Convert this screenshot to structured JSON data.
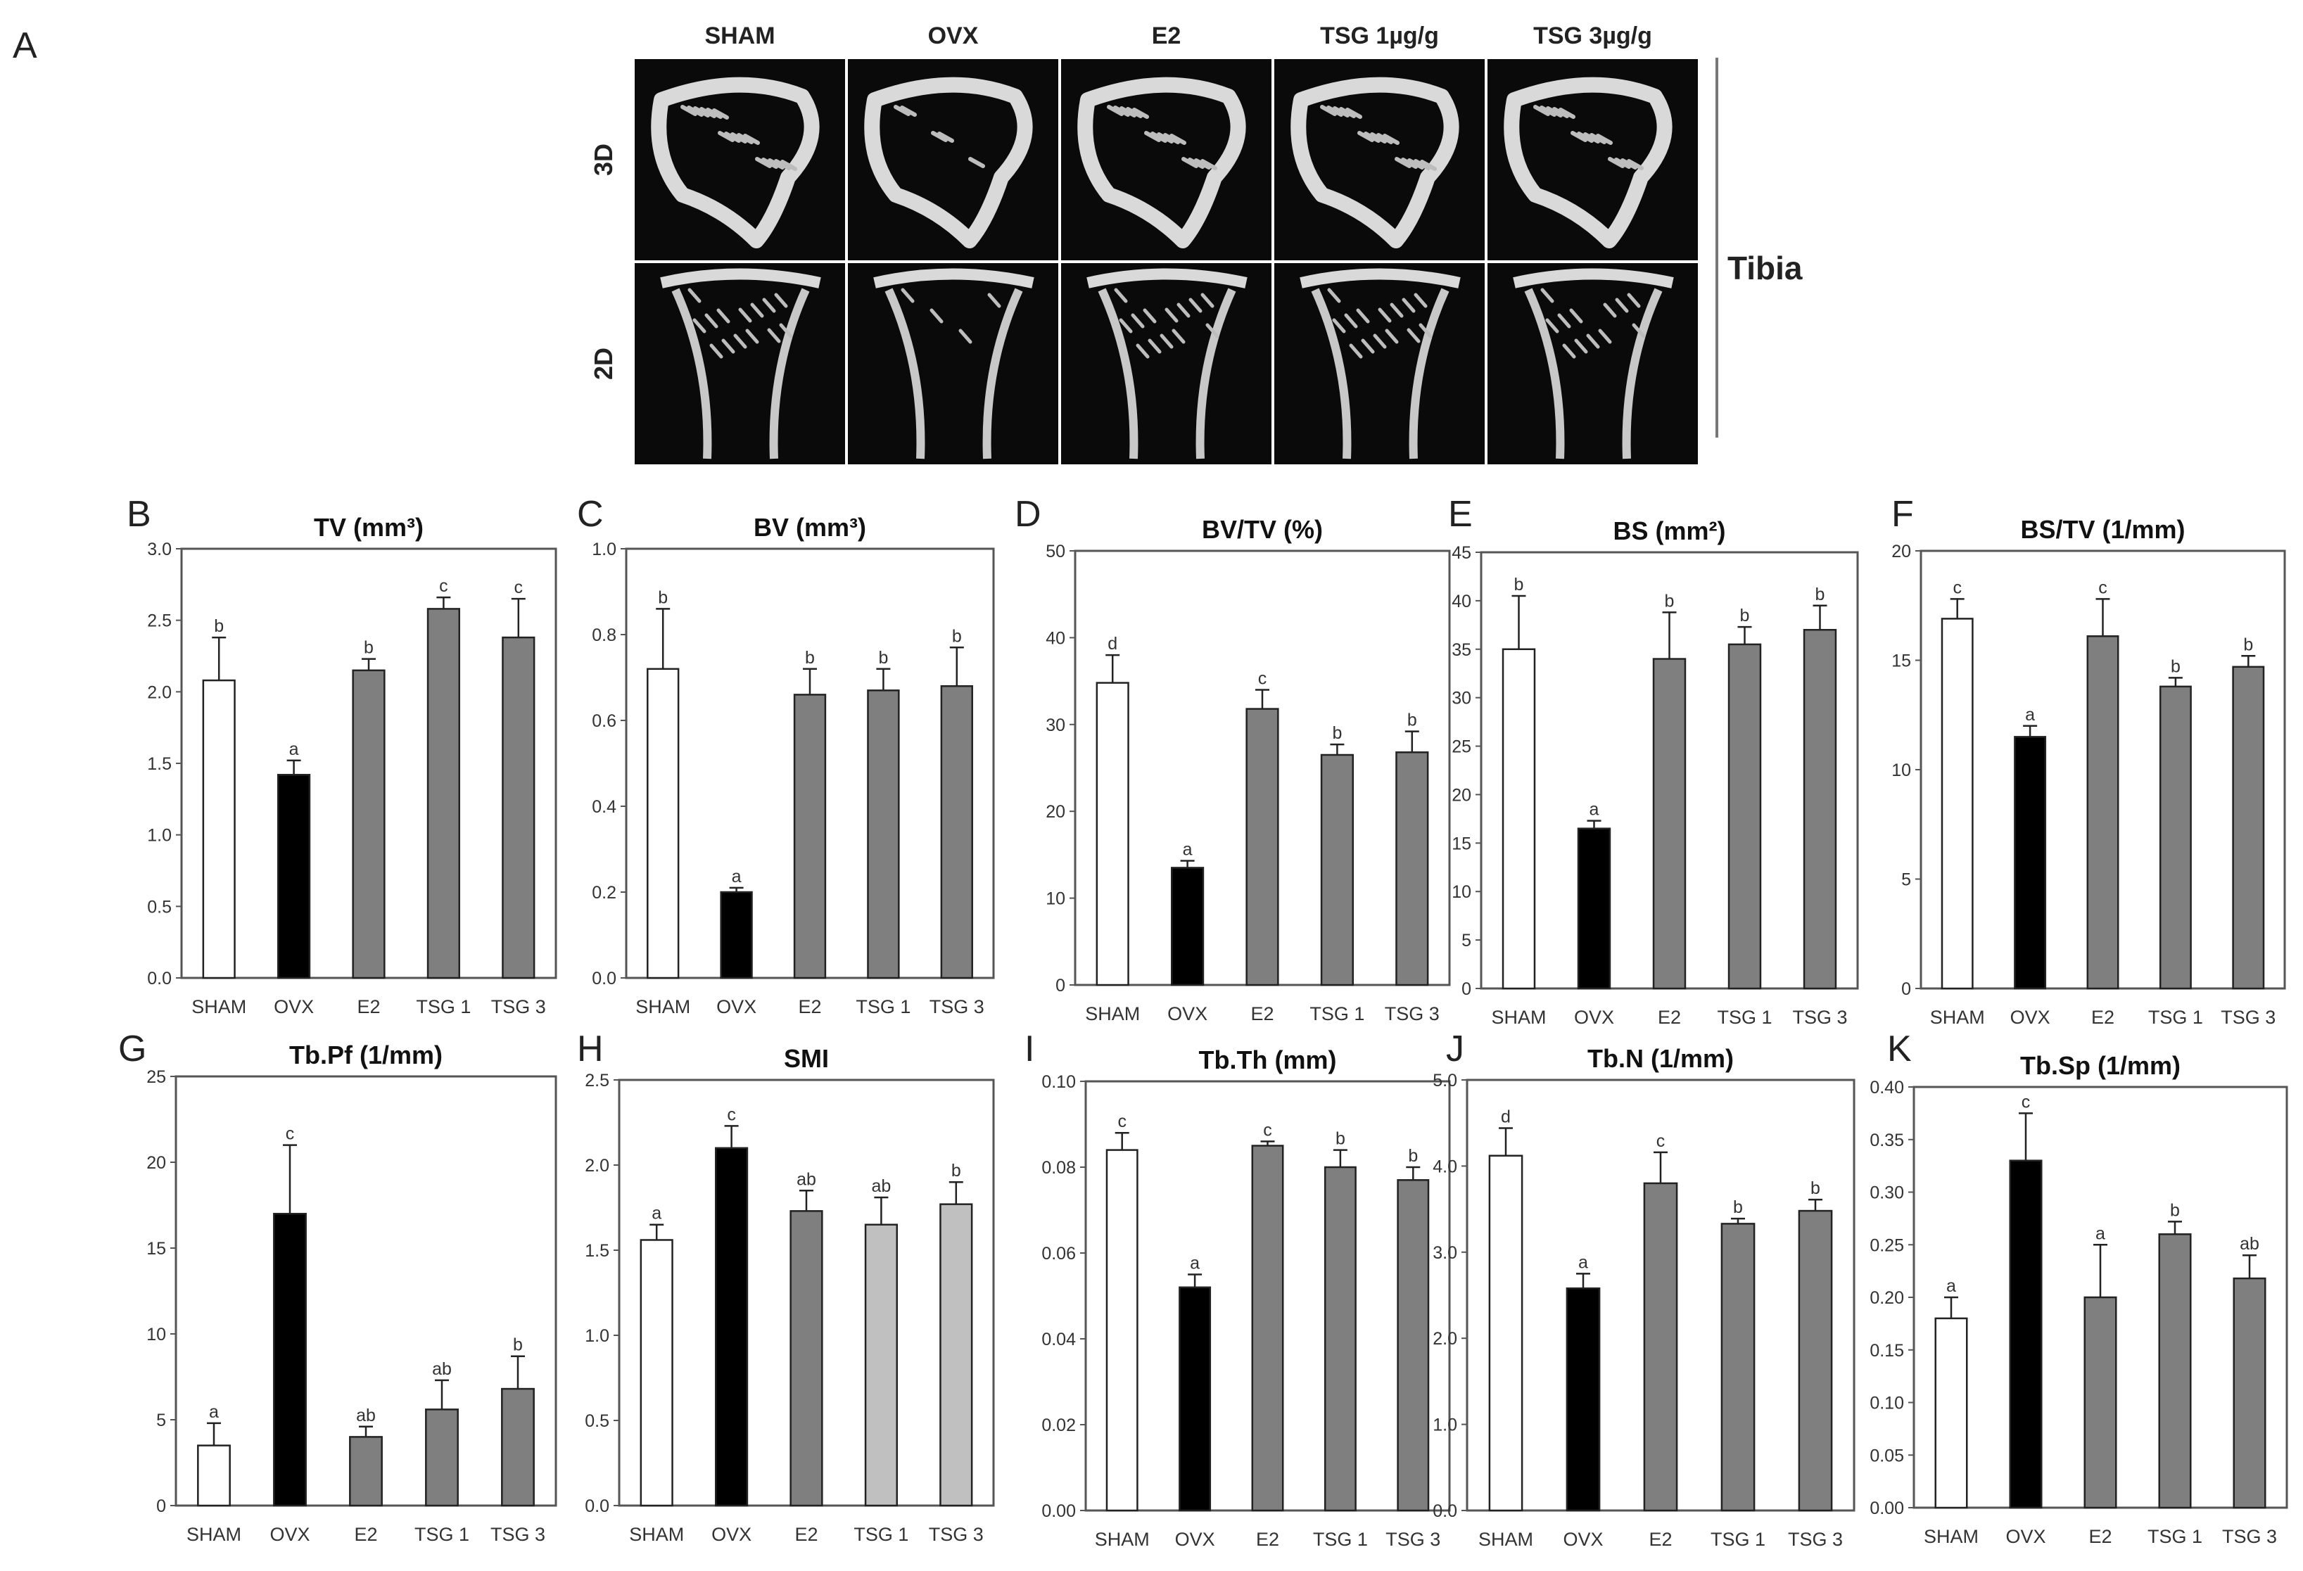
{
  "figure_panel_label": "A",
  "microct": {
    "columns": [
      "SHAM",
      "OVX",
      "E2",
      "TSG 1µg/g",
      "TSG 3µg/g"
    ],
    "rows": [
      "3D",
      "2D"
    ],
    "side_label": "Tibia"
  },
  "colors": {
    "SHAM": "#ffffff",
    "OVX": "#000000",
    "treated": "#7f7f7f",
    "treated_light": "#c0c0c0"
  },
  "chart_data": [
    {
      "panel": "B",
      "type": "bar",
      "title": "TV (mm³)",
      "categories": [
        "SHAM",
        "OVX",
        "E2",
        "TSG 1",
        "TSG 3"
      ],
      "values": [
        2.08,
        1.42,
        2.15,
        2.58,
        2.38
      ],
      "errors": [
        0.3,
        0.1,
        0.08,
        0.08,
        0.27
      ],
      "labels": [
        "b",
        "a",
        "b",
        "c",
        "c"
      ],
      "ylim": [
        0,
        3.0
      ],
      "yticks": [
        0,
        0.5,
        1.0,
        1.5,
        2.0,
        2.5,
        3.0
      ],
      "ytick_labels": [
        "0.0",
        "0.5",
        "1.0",
        "1.5",
        "2.0",
        "2.5",
        "3.0"
      ]
    },
    {
      "panel": "C",
      "type": "bar",
      "title": "BV (mm³)",
      "categories": [
        "SHAM",
        "OVX",
        "E2",
        "TSG 1",
        "TSG 3"
      ],
      "values": [
        0.72,
        0.2,
        0.66,
        0.67,
        0.68
      ],
      "errors": [
        0.14,
        0.01,
        0.06,
        0.05,
        0.09
      ],
      "labels": [
        "b",
        "a",
        "b",
        "b",
        "b"
      ],
      "ylim": [
        0,
        1.0
      ],
      "yticks": [
        0,
        0.2,
        0.4,
        0.6,
        0.8,
        1.0
      ],
      "ytick_labels": [
        "0.0",
        "0.2",
        "0.4",
        "0.6",
        "0.8",
        "1.0"
      ]
    },
    {
      "panel": "D",
      "type": "bar",
      "title": "BV/TV (%)",
      "categories": [
        "SHAM",
        "OVX",
        "E2",
        "TSG 1",
        "TSG 3"
      ],
      "values": [
        34.8,
        13.5,
        31.8,
        26.5,
        26.8
      ],
      "errors": [
        3.2,
        0.8,
        2.2,
        1.2,
        2.4
      ],
      "labels": [
        "d",
        "a",
        "c",
        "b",
        "b"
      ],
      "ylim": [
        0,
        50
      ],
      "yticks": [
        0,
        10,
        20,
        30,
        40,
        50
      ],
      "ytick_labels": [
        "0",
        "10",
        "20",
        "30",
        "40",
        "50"
      ]
    },
    {
      "panel": "E",
      "type": "bar",
      "title": "BS (mm²)",
      "categories": [
        "SHAM",
        "OVX",
        "E2",
        "TSG 1",
        "TSG 3"
      ],
      "values": [
        35.0,
        16.5,
        34.0,
        35.5,
        37.0
      ],
      "errors": [
        5.5,
        0.8,
        4.8,
        1.8,
        2.5
      ],
      "labels": [
        "b",
        "a",
        "b",
        "b",
        "b"
      ],
      "ylim": [
        0,
        45
      ],
      "yticks": [
        0,
        5,
        10,
        15,
        20,
        25,
        30,
        35,
        40,
        45
      ],
      "ytick_labels": [
        "0",
        "5",
        "10",
        "15",
        "20",
        "25",
        "30",
        "35",
        "40",
        "45"
      ]
    },
    {
      "panel": "F",
      "type": "bar",
      "title": "BS/TV (1/mm)",
      "categories": [
        "SHAM",
        "OVX",
        "E2",
        "TSG 1",
        "TSG 3"
      ],
      "values": [
        16.9,
        11.5,
        16.1,
        13.8,
        14.7
      ],
      "errors": [
        0.9,
        0.5,
        1.7,
        0.4,
        0.5
      ],
      "labels": [
        "c",
        "a",
        "c",
        "b",
        "b"
      ],
      "ylim": [
        0,
        20
      ],
      "yticks": [
        0,
        5,
        10,
        15,
        20
      ],
      "ytick_labels": [
        "0",
        "5",
        "10",
        "15",
        "20"
      ]
    },
    {
      "panel": "G",
      "type": "bar",
      "title": "Tb.Pf (1/mm)",
      "categories": [
        "SHAM",
        "OVX",
        "E2",
        "TSG 1",
        "TSG 3"
      ],
      "values": [
        3.5,
        17.0,
        4.0,
        5.6,
        6.8
      ],
      "errors": [
        1.3,
        4.0,
        0.6,
        1.7,
        1.9
      ],
      "labels": [
        "a",
        "c",
        "ab",
        "ab",
        "b"
      ],
      "ylim": [
        0,
        25
      ],
      "yticks": [
        0,
        5,
        10,
        15,
        20,
        25
      ],
      "ytick_labels": [
        "0",
        "5",
        "10",
        "15",
        "20",
        "25"
      ]
    },
    {
      "panel": "H",
      "type": "bar",
      "title": "SMI",
      "categories": [
        "SHAM",
        "OVX",
        "E2",
        "TSG 1",
        "TSG 3"
      ],
      "values": [
        1.56,
        2.1,
        1.73,
        1.65,
        1.77
      ],
      "errors": [
        0.09,
        0.13,
        0.12,
        0.16,
        0.13
      ],
      "labels": [
        "a",
        "c",
        "ab",
        "ab",
        "b"
      ],
      "ylim": [
        0,
        2.5
      ],
      "yticks": [
        0,
        0.5,
        1.0,
        1.5,
        2.0,
        2.5
      ],
      "ytick_labels": [
        "0.0",
        "0.5",
        "1.0",
        "1.5",
        "2.0",
        "2.5"
      ]
    },
    {
      "panel": "I",
      "type": "bar",
      "title": "Tb.Th (mm)",
      "categories": [
        "SHAM",
        "OVX",
        "E2",
        "TSG 1",
        "TSG 3"
      ],
      "values": [
        0.084,
        0.052,
        0.085,
        0.08,
        0.077
      ],
      "errors": [
        0.004,
        0.003,
        0.001,
        0.004,
        0.003
      ],
      "labels": [
        "c",
        "a",
        "c",
        "b",
        "b"
      ],
      "ylim": [
        0,
        0.1
      ],
      "yticks": [
        0,
        0.02,
        0.04,
        0.06,
        0.08,
        0.1
      ],
      "ytick_labels": [
        "0.00",
        "0.02",
        "0.04",
        "0.06",
        "0.08",
        "0.10"
      ]
    },
    {
      "panel": "J",
      "type": "bar",
      "title": "Tb.N (1/mm)",
      "categories": [
        "SHAM",
        "OVX",
        "E2",
        "TSG 1",
        "TSG 3"
      ],
      "values": [
        4.12,
        2.58,
        3.8,
        3.33,
        3.48
      ],
      "errors": [
        0.32,
        0.17,
        0.36,
        0.06,
        0.13
      ],
      "labels": [
        "d",
        "a",
        "c",
        "b",
        "b"
      ],
      "ylim": [
        0,
        5.0
      ],
      "yticks": [
        0,
        1,
        2,
        3,
        4,
        5
      ],
      "ytick_labels": [
        "0.0",
        "1.0",
        "2.0",
        "3.0",
        "4.0",
        "5.0"
      ]
    },
    {
      "panel": "K",
      "type": "bar",
      "title": "Tb.Sp (1/mm)",
      "categories": [
        "SHAM",
        "OVX",
        "E2",
        "TSG 1",
        "TSG 3"
      ],
      "values": [
        0.18,
        0.33,
        0.2,
        0.26,
        0.218
      ],
      "errors": [
        0.02,
        0.045,
        0.05,
        0.012,
        0.022
      ],
      "labels": [
        "a",
        "c",
        "a",
        "b",
        "ab"
      ],
      "ylim": [
        0,
        0.4
      ],
      "yticks": [
        0,
        0.05,
        0.1,
        0.15,
        0.2,
        0.25,
        0.3,
        0.35,
        0.4
      ],
      "ytick_labels": [
        "0.00",
        "0.05",
        "0.10",
        "0.15",
        "0.20",
        "0.25",
        "0.30",
        "0.35",
        "0.40"
      ]
    }
  ]
}
